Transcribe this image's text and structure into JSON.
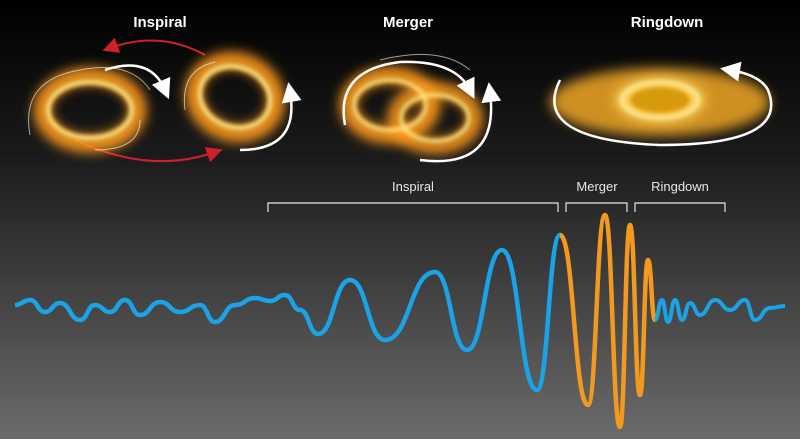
{
  "stages": [
    {
      "title": "Inspiral"
    },
    {
      "title": "Merger"
    },
    {
      "title": "Ringdown"
    }
  ],
  "phases": [
    {
      "label": "Inspiral"
    },
    {
      "label": "Merger"
    },
    {
      "label": "Ringdown"
    }
  ]
}
